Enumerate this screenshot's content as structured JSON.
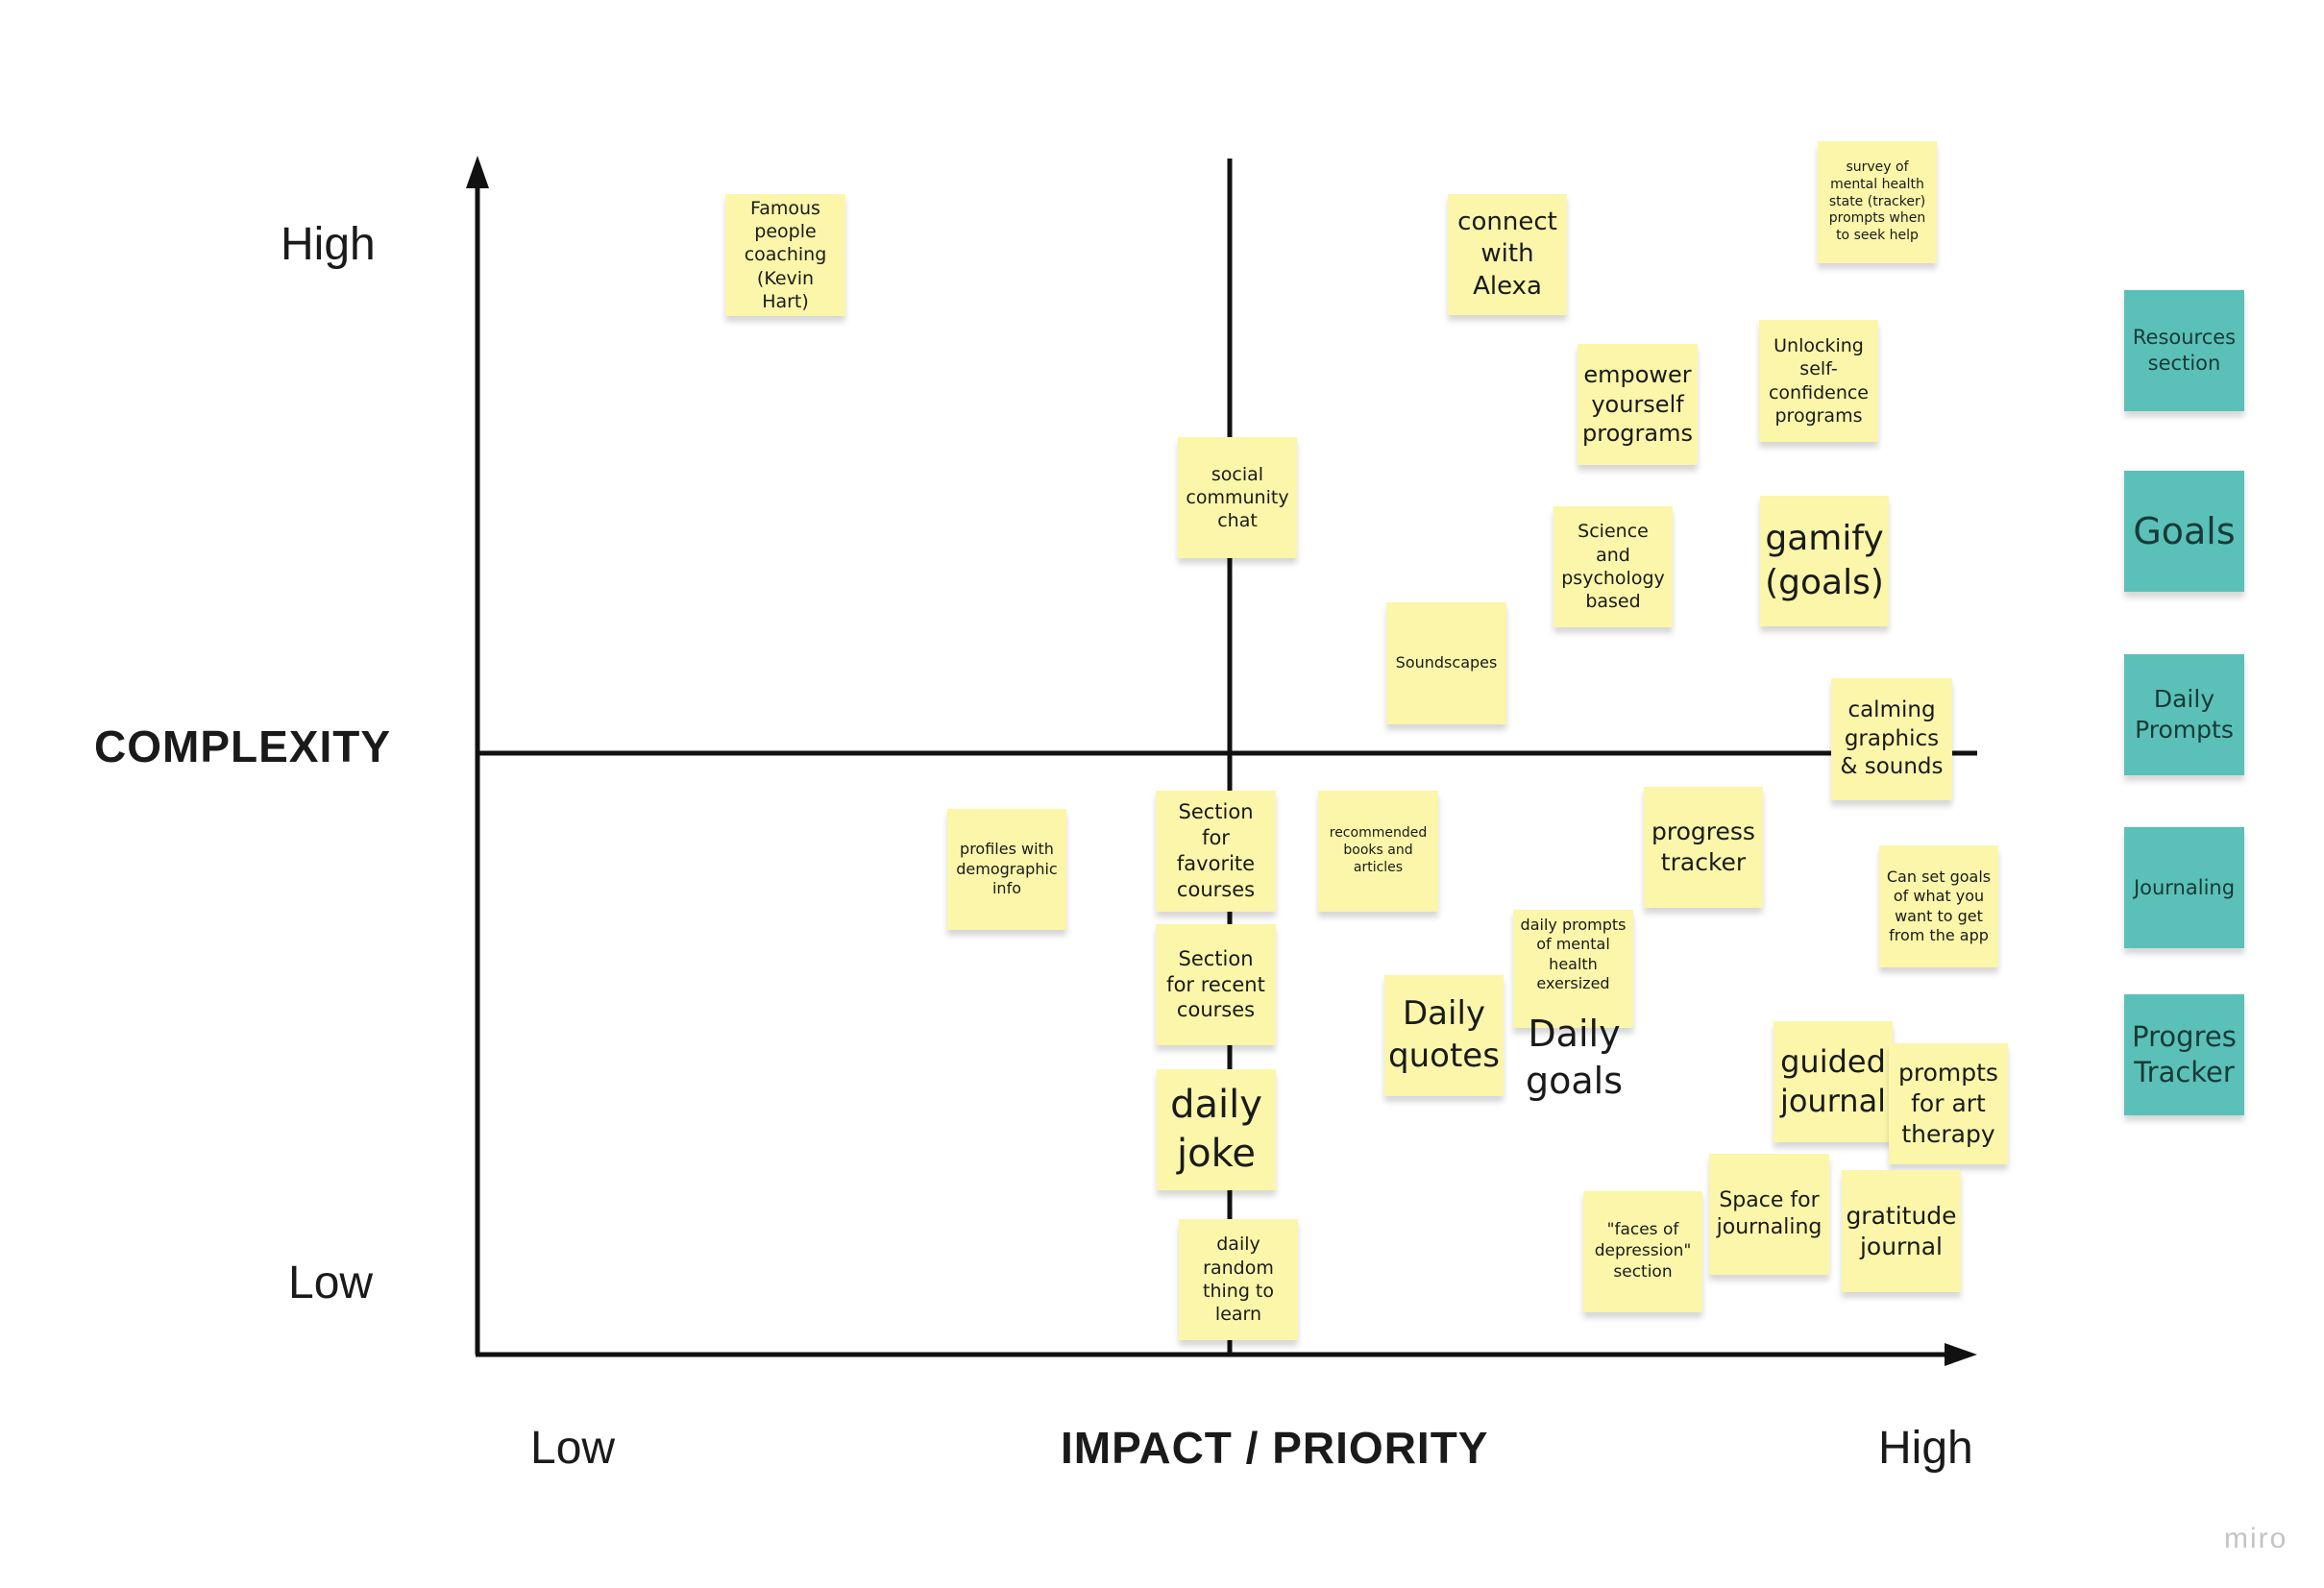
{
  "diagram": {
    "y_axis_title": "COMPLEXITY",
    "y_high": "High",
    "y_low": "Low",
    "x_axis_title": "IMPACT / PRIORITY",
    "x_low": "Low",
    "x_high": "High"
  },
  "colors": {
    "sticky_yellow": "#fbf6a9",
    "sticky_teal": "#5bc0b8",
    "axis": "#111111"
  },
  "notes": {
    "famous": "Famous\npeople\ncoaching\n(Kevin Hart)",
    "alexa": "connect\nwith\nAlexa",
    "survey": "survey of\nmental health\nstate (tracker)\nprompts when\nto seek help",
    "empower": "empower\nyourself\nprograms",
    "unlocking": "Unlocking\nself-\nconfidence\nprograms",
    "social": "social\ncommunity\nchat",
    "science": "Science and\npsychology\nbased",
    "gamify": "gamify\n(goals)",
    "soundscapes": "Soundscapes",
    "calming": "calming\ngraphics\n& sounds",
    "profiles": "profiles with\ndemographic\ninfo",
    "favorite": "Section for\nfavorite\ncourses",
    "books": "recommended\nbooks and\narticles",
    "progress": "progress\ntracker",
    "setgoals": "Can set goals\nof what you\nwant to get\nfrom the app",
    "recent": "Section\nfor recent\ncourses",
    "dailyprompts_small": "daily prompts\nof mental\nhealth\nexersized",
    "dailygoals": "Daily\ngoals",
    "dailyquotes": "Daily\nquotes",
    "joke": "daily\njoke",
    "guided": "guided\njournal",
    "art": "prompts\nfor art\ntherapy",
    "random": "daily\nrandom\nthing to\nlearn",
    "faces": "\"faces of\ndepression\"\nsection",
    "space": "Space for\njournaling",
    "gratitude": "gratitude\njournal"
  },
  "categories": {
    "resources": "Resources\nsection",
    "goals": "Goals",
    "daily_prompts": "Daily\nPrompts",
    "journaling": "Journaling",
    "progress_tracker": "Progres\nTracker"
  },
  "watermark": "miro"
}
